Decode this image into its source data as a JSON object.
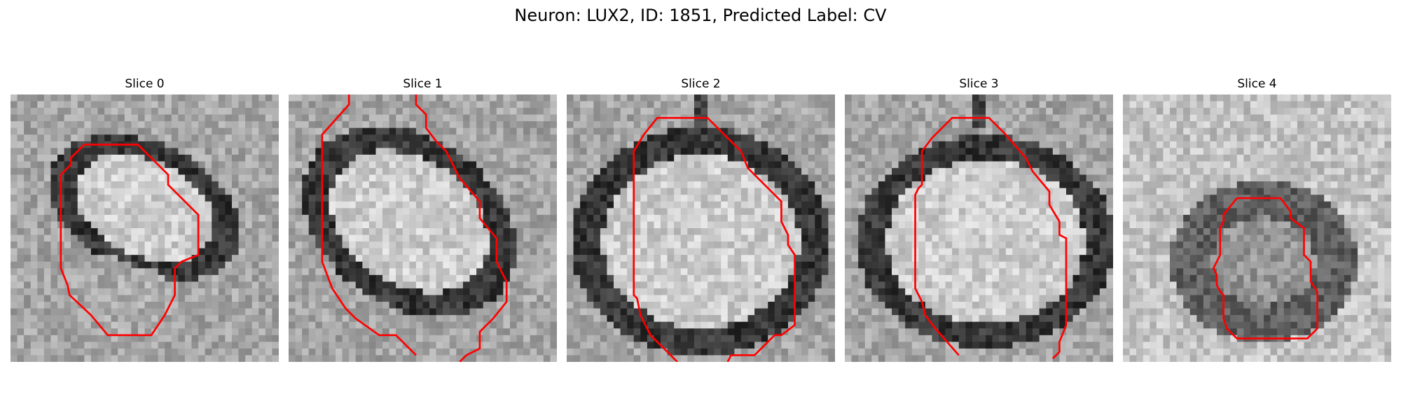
{
  "figure": {
    "title": "Neuron: LUX2, ID: 1851, Predicted Label: CV"
  },
  "colors": {
    "contour": "#ff0000",
    "background": "#ffffff",
    "image_palette": "grayscale"
  },
  "panels": [
    {
      "title": "Slice 0"
    },
    {
      "title": "Slice 1"
    },
    {
      "title": "Slice 2"
    },
    {
      "title": "Slice 3"
    },
    {
      "title": "Slice 4"
    }
  ]
}
